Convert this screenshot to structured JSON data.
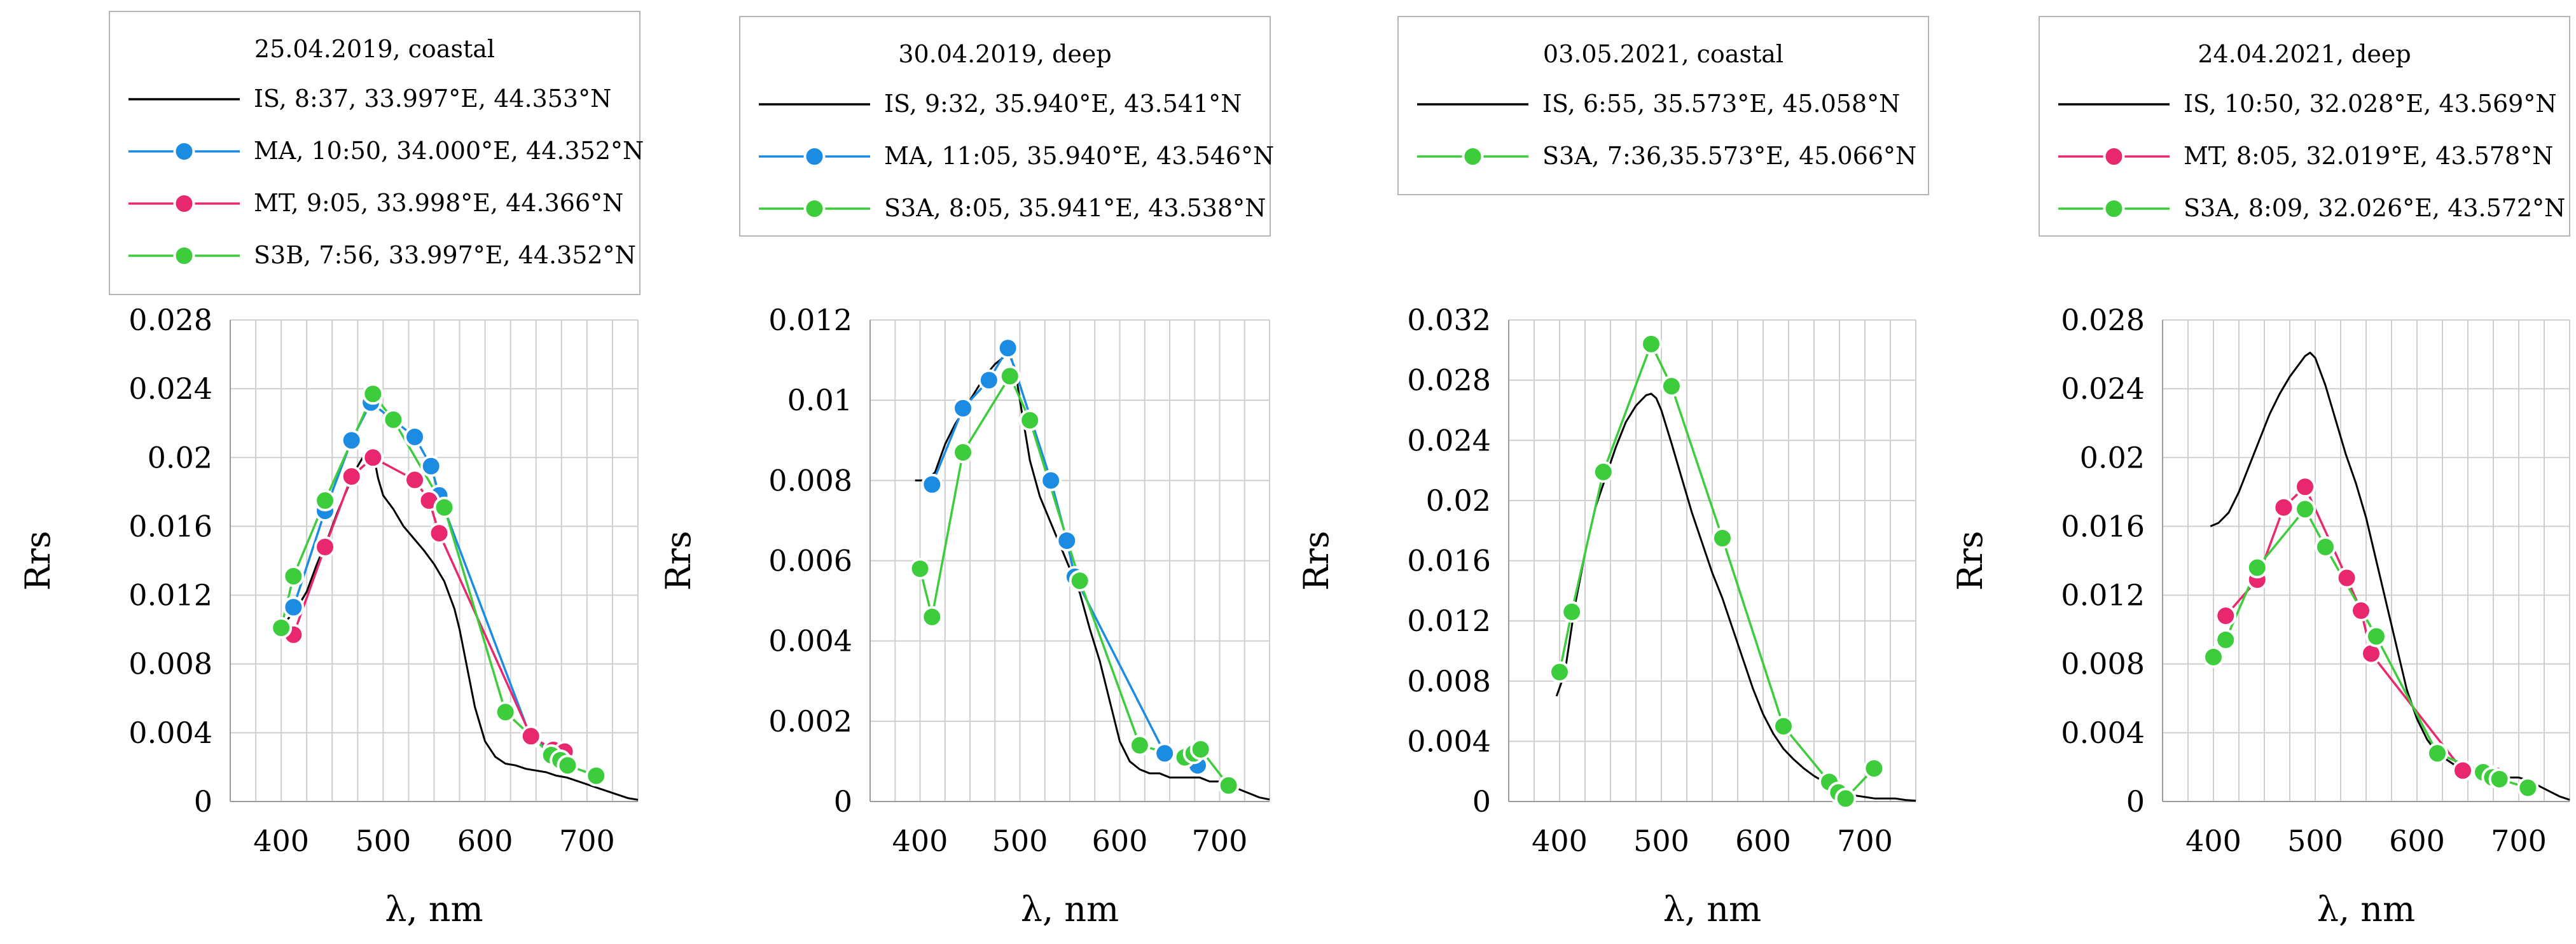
{
  "chart_data": [
    {
      "type": "line",
      "title": "25.04.2019, coastal",
      "xlabel": "λ, nm",
      "ylabel": "Rrs",
      "xlim": [
        350,
        750
      ],
      "xticks": [
        400,
        500,
        600,
        700
      ],
      "xtick_labels": [
        "400",
        "500",
        "600",
        "700"
      ],
      "ylim": [
        0,
        0.028
      ],
      "yticks": [
        0,
        0.004,
        0.008,
        0.012,
        0.016,
        0.02,
        0.024,
        0.028
      ],
      "ytick_labels": [
        "0",
        "0.004",
        "0.008",
        "0.012",
        "0.016",
        "0.02",
        "0.024",
        "0.028"
      ],
      "grid": true,
      "series": [
        {
          "name": "IS, 8:37, 33.997°E, 44.353°N",
          "color": "#000000",
          "marker": false,
          "x": [
            395,
            405,
            415,
            425,
            435,
            445,
            455,
            465,
            475,
            485,
            490,
            495,
            500,
            510,
            520,
            530,
            540,
            550,
            560,
            570,
            575,
            580,
            590,
            600,
            610,
            620,
            630,
            640,
            650,
            660,
            670,
            680,
            690,
            700,
            710,
            720,
            730,
            740,
            750
          ],
          "y": [
            0.0104,
            0.0105,
            0.0112,
            0.0122,
            0.0138,
            0.0152,
            0.0168,
            0.0182,
            0.0195,
            0.0205,
            0.0203,
            0.0188,
            0.0178,
            0.017,
            0.016,
            0.0153,
            0.0146,
            0.0138,
            0.0128,
            0.0112,
            0.01,
            0.0085,
            0.0055,
            0.0035,
            0.0026,
            0.0022,
            0.0021,
            0.0019,
            0.0018,
            0.0017,
            0.0015,
            0.0014,
            0.0012,
            0.001,
            0.0008,
            0.0006,
            0.0004,
            0.0002,
            0.0001
          ]
        },
        {
          "name": "MA, 10:50, 34.000°E, 44.352°N",
          "color": "#1c8ce2",
          "marker": true,
          "x": [
            412,
            443,
            469,
            488,
            531,
            547,
            555,
            645,
            667,
            678
          ],
          "y": [
            0.0113,
            0.0169,
            0.021,
            0.0232,
            0.0212,
            0.0195,
            0.0178,
            0.0037,
            0.0029,
            0.0028
          ]
        },
        {
          "name": "MT, 9:05, 33.998°E, 44.366°N",
          "color": "#e8276e",
          "marker": true,
          "x": [
            412,
            443,
            469,
            490,
            531,
            545,
            555,
            645,
            667,
            678
          ],
          "y": [
            0.0097,
            0.0148,
            0.0189,
            0.02,
            0.0187,
            0.0175,
            0.0156,
            0.0038,
            0.003,
            0.0029
          ]
        },
        {
          "name": "S3B, 7:56, 33.997°E, 44.352°N",
          "color": "#3ccc3c",
          "marker": true,
          "x": [
            400,
            412,
            443,
            490,
            510,
            560,
            620,
            665,
            674,
            681,
            709
          ],
          "y": [
            0.0101,
            0.0131,
            0.0175,
            0.0237,
            0.0222,
            0.0171,
            0.0052,
            0.0027,
            0.0024,
            0.0021,
            0.0015
          ]
        }
      ]
    },
    {
      "type": "line",
      "title": "30.04.2019, deep",
      "xlabel": "λ, nm",
      "ylabel": "Rrs",
      "xlim": [
        350,
        750
      ],
      "xticks": [
        400,
        500,
        600,
        700
      ],
      "xtick_labels": [
        "400",
        "500",
        "600",
        "700"
      ],
      "ylim": [
        0,
        0.012
      ],
      "yticks": [
        0,
        0.002,
        0.004,
        0.006,
        0.008,
        0.01,
        0.012
      ],
      "ytick_labels": [
        "0",
        "0.002",
        "0.004",
        "0.006",
        "0.008",
        "0.01",
        "0.012"
      ],
      "grid": true,
      "series": [
        {
          "name": "IS, 9:32, 35.940°E, 43.541°N",
          "color": "#000000",
          "marker": false,
          "x": [
            395,
            405,
            415,
            425,
            435,
            445,
            455,
            465,
            475,
            485,
            490,
            495,
            500,
            510,
            520,
            530,
            540,
            550,
            560,
            570,
            580,
            590,
            600,
            610,
            620,
            630,
            640,
            650,
            660,
            670,
            680,
            690,
            700,
            710,
            720,
            730,
            740,
            750
          ],
          "y": [
            0.008,
            0.008,
            0.0082,
            0.0089,
            0.0094,
            0.0098,
            0.0102,
            0.0106,
            0.0109,
            0.0111,
            0.0111,
            0.0108,
            0.01,
            0.0085,
            0.0076,
            0.007,
            0.0064,
            0.0058,
            0.0052,
            0.0043,
            0.0035,
            0.0025,
            0.0015,
            0.001,
            0.0008,
            0.0007,
            0.0007,
            0.0006,
            0.0006,
            0.0006,
            0.0006,
            0.0005,
            0.0005,
            0.0004,
            0.0003,
            0.0002,
            0.0001,
            5e-05
          ]
        },
        {
          "name": "MA, 11:05, 35.940°E, 43.546°N",
          "color": "#1c8ce2",
          "marker": true,
          "x": [
            412,
            443,
            469,
            488,
            531,
            547,
            555,
            645,
            667,
            678
          ],
          "y": [
            0.0079,
            0.0098,
            0.0105,
            0.0113,
            0.008,
            0.0065,
            0.0056,
            0.0012,
            0.0011,
            0.0009
          ]
        },
        {
          "name": "S3A, 8:05, 35.941°E, 43.538°N",
          "color": "#3ccc3c",
          "marker": true,
          "x": [
            400,
            412,
            443,
            490,
            510,
            560,
            620,
            665,
            674,
            681,
            709
          ],
          "y": [
            0.0058,
            0.0046,
            0.0087,
            0.0106,
            0.0095,
            0.0055,
            0.0014,
            0.0011,
            0.0012,
            0.0013,
            0.0004
          ]
        }
      ]
    },
    {
      "type": "line",
      "title": "03.05.2021, coastal",
      "xlabel": "λ, nm",
      "ylabel": "Rrs",
      "xlim": [
        350,
        750
      ],
      "xticks": [
        400,
        500,
        600,
        700
      ],
      "xtick_labels": [
        "400",
        "500",
        "600",
        "700"
      ],
      "ylim": [
        0,
        0.032
      ],
      "yticks": [
        0,
        0.004,
        0.008,
        0.012,
        0.016,
        0.02,
        0.024,
        0.028,
        0.032
      ],
      "ytick_labels": [
        "0",
        "0.004",
        "0.008",
        "0.012",
        "0.016",
        "0.02",
        "0.024",
        "0.028",
        "0.032"
      ],
      "grid": true,
      "series": [
        {
          "name": "IS, 6:55, 35.573°E, 45.058°N",
          "color": "#000000",
          "marker": false,
          "x": [
            397,
            405,
            415,
            425,
            435,
            445,
            455,
            465,
            475,
            485,
            490,
            495,
            500,
            510,
            520,
            530,
            540,
            550,
            560,
            570,
            580,
            590,
            600,
            610,
            620,
            630,
            640,
            650,
            660,
            670,
            680,
            690,
            700,
            710,
            720,
            730,
            740,
            750
          ],
          "y": [
            0.007,
            0.0085,
            0.013,
            0.0165,
            0.0195,
            0.0215,
            0.0235,
            0.0252,
            0.0263,
            0.027,
            0.0271,
            0.0268,
            0.026,
            0.0238,
            0.0215,
            0.0192,
            0.0172,
            0.0152,
            0.0135,
            0.0115,
            0.0095,
            0.0075,
            0.0058,
            0.0045,
            0.0035,
            0.0028,
            0.0022,
            0.0017,
            0.0013,
            0.0009,
            0.0006,
            0.0004,
            0.0003,
            0.0002,
            0.0002,
            0.0002,
            0.0001,
            5e-05
          ]
        },
        {
          "name": "S3A, 7:36,35.573°E, 45.066°N",
          "color": "#3ccc3c",
          "marker": true,
          "x": [
            400,
            412,
            443,
            490,
            510,
            560,
            620,
            665,
            674,
            681,
            709
          ],
          "y": [
            0.0086,
            0.0126,
            0.0219,
            0.0304,
            0.0276,
            0.0175,
            0.005,
            0.0013,
            0.0006,
            0.0002,
            0.0022
          ]
        }
      ]
    },
    {
      "type": "line",
      "title": "24.04.2021, deep",
      "xlabel": "λ, nm",
      "ylabel": "Rrs",
      "xlim": [
        350,
        750
      ],
      "xticks": [
        400,
        500,
        600,
        700
      ],
      "xtick_labels": [
        "400",
        "500",
        "600",
        "700"
      ],
      "ylim": [
        0,
        0.028
      ],
      "yticks": [
        0,
        0.004,
        0.008,
        0.012,
        0.016,
        0.02,
        0.024,
        0.028
      ],
      "ytick_labels": [
        "0",
        "0.004",
        "0.008",
        "0.012",
        "0.016",
        "0.02",
        "0.024",
        "0.028"
      ],
      "grid": true,
      "series": [
        {
          "name": "IS, 10:50, 32.028°E, 43.569°N",
          "color": "#000000",
          "marker": false,
          "x": [
            397,
            405,
            415,
            425,
            435,
            445,
            455,
            465,
            475,
            485,
            490,
            495,
            500,
            510,
            520,
            530,
            540,
            550,
            560,
            570,
            580,
            590,
            600,
            610,
            620,
            630,
            640,
            650,
            660,
            670,
            680,
            690,
            700,
            710,
            720,
            730,
            740,
            750
          ],
          "y": [
            0.016,
            0.0162,
            0.0168,
            0.018,
            0.0195,
            0.021,
            0.0225,
            0.0237,
            0.0247,
            0.0255,
            0.0259,
            0.0261,
            0.0258,
            0.0242,
            0.0222,
            0.0202,
            0.0185,
            0.0165,
            0.014,
            0.0115,
            0.009,
            0.0065,
            0.0048,
            0.0036,
            0.0028,
            0.0024,
            0.002,
            0.0018,
            0.0017,
            0.0016,
            0.0016,
            0.0014,
            0.0014,
            0.0012,
            0.0009,
            0.0006,
            0.0003,
            0.0001
          ]
        },
        {
          "name": "MT, 8:05, 32.019°E, 43.578°N",
          "color": "#e8276e",
          "marker": true,
          "x": [
            412,
            443,
            469,
            490,
            531,
            545,
            555,
            645,
            667,
            678
          ],
          "y": [
            0.0108,
            0.0129,
            0.0171,
            0.0183,
            0.013,
            0.0111,
            0.0086,
            0.0018,
            0.0016,
            0.0015
          ]
        },
        {
          "name": "S3A, 8:09, 32.026°E, 43.572°N",
          "color": "#3ccc3c",
          "marker": true,
          "x": [
            400,
            412,
            443,
            490,
            510,
            560,
            620,
            665,
            674,
            681,
            709
          ],
          "y": [
            0.0084,
            0.0094,
            0.0136,
            0.017,
            0.0148,
            0.0096,
            0.0028,
            0.0017,
            0.0014,
            0.0013,
            0.0008
          ]
        }
      ]
    }
  ]
}
